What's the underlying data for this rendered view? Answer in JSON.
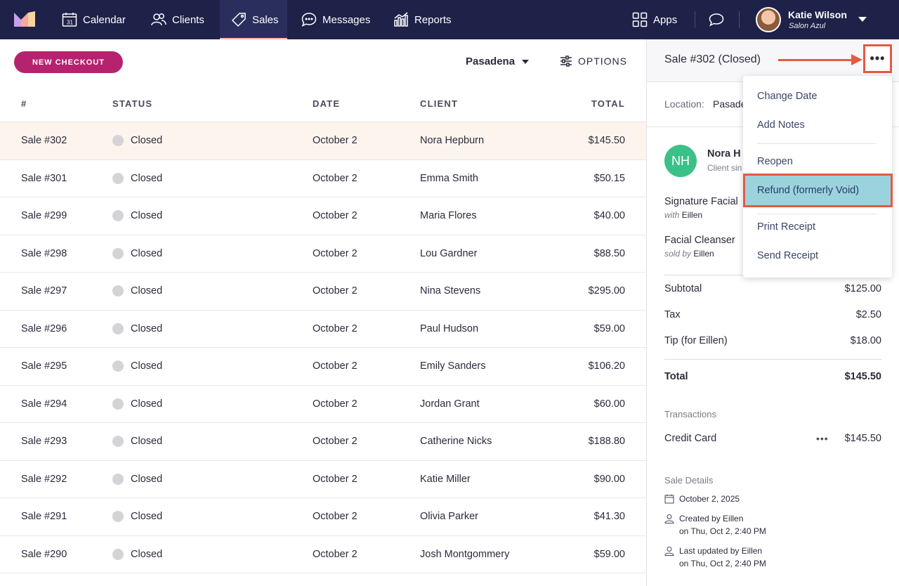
{
  "nav": {
    "items": [
      {
        "label": "Calendar",
        "icon": "calendar-icon"
      },
      {
        "label": "Clients",
        "icon": "clients-icon"
      },
      {
        "label": "Sales",
        "icon": "tag-icon"
      },
      {
        "label": "Messages",
        "icon": "chat-icon"
      },
      {
        "label": "Reports",
        "icon": "bar-chart-icon"
      }
    ],
    "active": "Sales",
    "apps_label": "Apps",
    "user": {
      "name": "Katie Wilson",
      "org": "Salon Azul"
    }
  },
  "toolbar": {
    "new_checkout": "NEW CHECKOUT",
    "location": "Pasadena",
    "options": "OPTIONS"
  },
  "table": {
    "headers": [
      "#",
      "STATUS",
      "DATE",
      "CLIENT",
      "TOTAL"
    ],
    "rows": [
      {
        "num": "Sale #302",
        "status": "Closed",
        "date": "October 2",
        "client": "Nora Hepburn",
        "total": "$145.50"
      },
      {
        "num": "Sale #301",
        "status": "Closed",
        "date": "October 2",
        "client": "Emma Smith",
        "total": "$50.15"
      },
      {
        "num": "Sale #299",
        "status": "Closed",
        "date": "October 2",
        "client": "Maria Flores",
        "total": "$40.00"
      },
      {
        "num": "Sale #298",
        "status": "Closed",
        "date": "October 2",
        "client": "Lou Gardner",
        "total": "$88.50"
      },
      {
        "num": "Sale #297",
        "status": "Closed",
        "date": "October 2",
        "client": "Nina Stevens",
        "total": "$295.00"
      },
      {
        "num": "Sale #296",
        "status": "Closed",
        "date": "October 2",
        "client": "Paul Hudson",
        "total": "$59.00"
      },
      {
        "num": "Sale #295",
        "status": "Closed",
        "date": "October 2",
        "client": "Emily Sanders",
        "total": "$106.20"
      },
      {
        "num": "Sale #294",
        "status": "Closed",
        "date": "October 2",
        "client": "Jordan Grant",
        "total": "$60.00"
      },
      {
        "num": "Sale #293",
        "status": "Closed",
        "date": "October 2",
        "client": "Catherine Nicks",
        "total": "$188.80"
      },
      {
        "num": "Sale #292",
        "status": "Closed",
        "date": "October 2",
        "client": "Katie Miller",
        "total": "$90.00"
      },
      {
        "num": "Sale #291",
        "status": "Closed",
        "date": "October 2",
        "client": "Olivia Parker",
        "total": "$41.30"
      },
      {
        "num": "Sale #290",
        "status": "Closed",
        "date": "October 2",
        "client": "Josh Montgommery",
        "total": "$59.00"
      }
    ]
  },
  "detail": {
    "title": "Sale #302 (Closed)",
    "location_label": "Location:",
    "location_value": "Pasade",
    "client_initials": "NH",
    "client_name": "Nora H",
    "client_since": "Client sin",
    "items": [
      {
        "name": "Signature Facial",
        "sub_prefix": "with",
        "sub_person": "Eillen"
      },
      {
        "name": "Facial Cleanser",
        "sub_prefix": "sold by",
        "sub_person": "Eillen"
      }
    ],
    "subtotal_label": "Subtotal",
    "subtotal": "$125.00",
    "tax_label": "Tax",
    "tax": "$2.50",
    "tip_label": "Tip (for Eillen)",
    "tip": "$18.00",
    "total_label": "Total",
    "total": "$145.50",
    "transactions_label": "Transactions",
    "tx_method": "Credit Card",
    "tx_amount": "$145.50",
    "sale_details_label": "Sale Details",
    "sale_date": "October 2, 2025",
    "created_by": "Created by Eillen",
    "created_on": "on Thu, Oct 2, 2:40 PM",
    "updated_by": "Last updated by Eillen",
    "updated_on": "on Thu, Oct 2, 2:40 PM"
  },
  "menu": {
    "items": [
      "Change Date",
      "Add Notes",
      "Reopen",
      "Refund (formerly Void)",
      "Print Receipt",
      "Send Receipt"
    ],
    "highlighted": "Refund (formerly Void)"
  },
  "colors": {
    "nav_bg": "#1e2148",
    "accent": "#b5236f",
    "annotation": "#e55a43",
    "highlight": "#9bd3dd",
    "avatar_green": "#3cc08a"
  }
}
